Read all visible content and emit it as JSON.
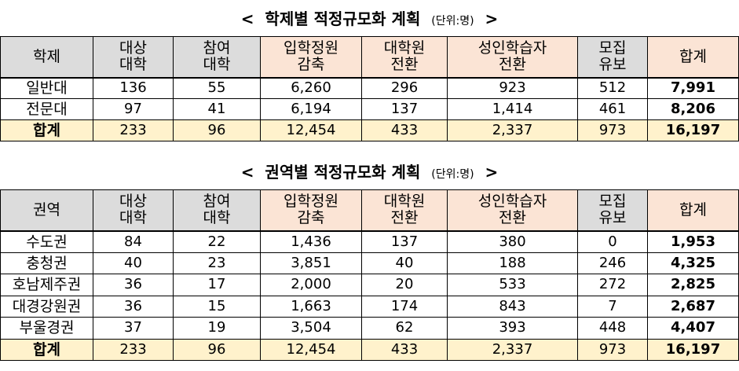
{
  "tables": [
    {
      "title_open": "<",
      "title": "학제별 적정규모화 계획",
      "unit": "(단위:명)",
      "title_close": ">",
      "headers": [
        "학제",
        "대상\n대학",
        "참여\n대학",
        "입학정원\n감축",
        "대학원\n전환",
        "성인학습자\n전환",
        "모집\n유보",
        "합계"
      ],
      "rows": [
        [
          "일반대",
          "136",
          "55",
          "6,260",
          "296",
          "923",
          "512",
          "7,991"
        ],
        [
          "전문대",
          "97",
          "41",
          "6,194",
          "137",
          "1,414",
          "461",
          "8,206"
        ],
        [
          "합계",
          "233",
          "96",
          "12,454",
          "433",
          "2,337",
          "973",
          "16,197"
        ]
      ]
    },
    {
      "title_open": "<",
      "title": "권역별 적정규모화 계획",
      "unit": "(단위:명)",
      "title_close": ">",
      "headers": [
        "권역",
        "대상\n대학",
        "참여\n대학",
        "입학정원\n감축",
        "대학원\n전환",
        "성인학습자\n전환",
        "모집\n유보",
        "합계"
      ],
      "rows": [
        [
          "수도권",
          "84",
          "22",
          "1,436",
          "137",
          "380",
          "0",
          "1,953"
        ],
        [
          "충청권",
          "40",
          "23",
          "3,851",
          "40",
          "188",
          "246",
          "4,325"
        ],
        [
          "호남제주권",
          "36",
          "17",
          "2,000",
          "20",
          "533",
          "272",
          "2,825"
        ],
        [
          "대경강원권",
          "36",
          "15",
          "1,663",
          "174",
          "843",
          "7",
          "2,687"
        ],
        [
          "부울경권",
          "37",
          "19",
          "3,504",
          "62",
          "393",
          "448",
          "4,407"
        ],
        [
          "합계",
          "233",
          "96",
          "12,454",
          "433",
          "2,337",
          "973",
          "16,197"
        ]
      ]
    }
  ],
  "colors": {
    "header_gray": "#dcdcdc",
    "header_peach": "#fbe4d5",
    "sum_row": "#fff2cc",
    "border": "#000000"
  }
}
